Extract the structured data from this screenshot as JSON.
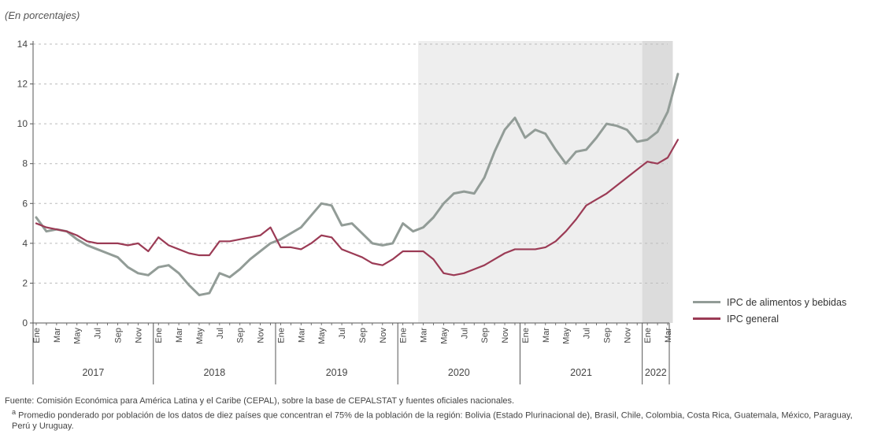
{
  "colors": {
    "food": "#929c97",
    "general": "#9b3b55",
    "shade_light": "#eeeeee",
    "shade_dark": "#dcdcdc",
    "grid": "#bbbbbb",
    "axis": "#555555"
  },
  "subtitle": "(En porcentajes)",
  "chart_data": {
    "type": "line",
    "ylim": [
      0,
      14
    ],
    "yticks": [
      0,
      2,
      4,
      6,
      8,
      10,
      12,
      14
    ],
    "grid": "horizontal-dotted",
    "legend_position": "right",
    "month_labels": [
      "Ene",
      "Mar",
      "May",
      "Jul",
      "Sep",
      "Nov"
    ],
    "month_labels_2022": [
      "Ene",
      "Mar"
    ],
    "years": [
      "2017",
      "2018",
      "2019",
      "2020",
      "2021",
      "2022"
    ],
    "x_start": "2017-01",
    "x_end": "2022-03",
    "shaded_periods": [
      {
        "from": "2020-03",
        "to": "2022-03"
      },
      {
        "from": "2022-01",
        "to": "2022-03"
      }
    ],
    "series": [
      {
        "name": "IPC de alimentos y bebidas",
        "color": "#929c97",
        "values": [
          5.3,
          4.6,
          4.7,
          4.6,
          4.2,
          3.9,
          3.7,
          3.5,
          3.3,
          2.8,
          2.5,
          2.4,
          2.8,
          2.9,
          2.5,
          1.9,
          1.4,
          1.5,
          2.5,
          2.3,
          2.7,
          3.2,
          3.6,
          4.0,
          4.2,
          4.5,
          4.8,
          5.4,
          6.0,
          5.9,
          4.9,
          5.0,
          4.5,
          4.0,
          3.9,
          4.0,
          5.0,
          4.6,
          4.8,
          5.3,
          6.0,
          6.5,
          6.6,
          6.5,
          7.3,
          8.6,
          9.7,
          10.3,
          9.3,
          9.7,
          9.5,
          8.7,
          8.0,
          8.6,
          8.7,
          9.3,
          10.0,
          9.9,
          9.7,
          9.1,
          9.2,
          9.6,
          10.6,
          12.5
        ]
      },
      {
        "name": "IPC general",
        "color": "#9b3b55",
        "values": [
          5.0,
          4.8,
          4.7,
          4.6,
          4.4,
          4.1,
          4.0,
          4.0,
          4.0,
          3.9,
          4.0,
          3.6,
          4.3,
          3.9,
          3.7,
          3.5,
          3.4,
          3.4,
          4.1,
          4.1,
          4.2,
          4.3,
          4.4,
          4.8,
          3.8,
          3.8,
          3.7,
          4.0,
          4.4,
          4.3,
          3.7,
          3.5,
          3.3,
          3.0,
          2.9,
          3.2,
          3.6,
          3.6,
          3.6,
          3.2,
          2.5,
          2.4,
          2.5,
          2.7,
          2.9,
          3.2,
          3.5,
          3.7,
          3.7,
          3.7,
          3.8,
          4.1,
          4.6,
          5.2,
          5.9,
          6.2,
          6.5,
          6.9,
          7.3,
          7.7,
          8.1,
          8.0,
          8.3,
          9.2
        ]
      }
    ]
  },
  "notes": {
    "source": "Fuente: Comisión Económica para América Latina y el Caribe (CEPAL), sobre la base de CEPALSTAT y fuentes oficiales nacionales.",
    "footnote_marker": "a",
    "footnote": "Promedio ponderado por población de los datos de diez países que concentran el 75% de la población de la región: Bolivia (Estado Plurinacional de), Brasil, Chile, Colombia, Costa Rica, Guatemala, México, Paraguay, Perú y Uruguay."
  }
}
